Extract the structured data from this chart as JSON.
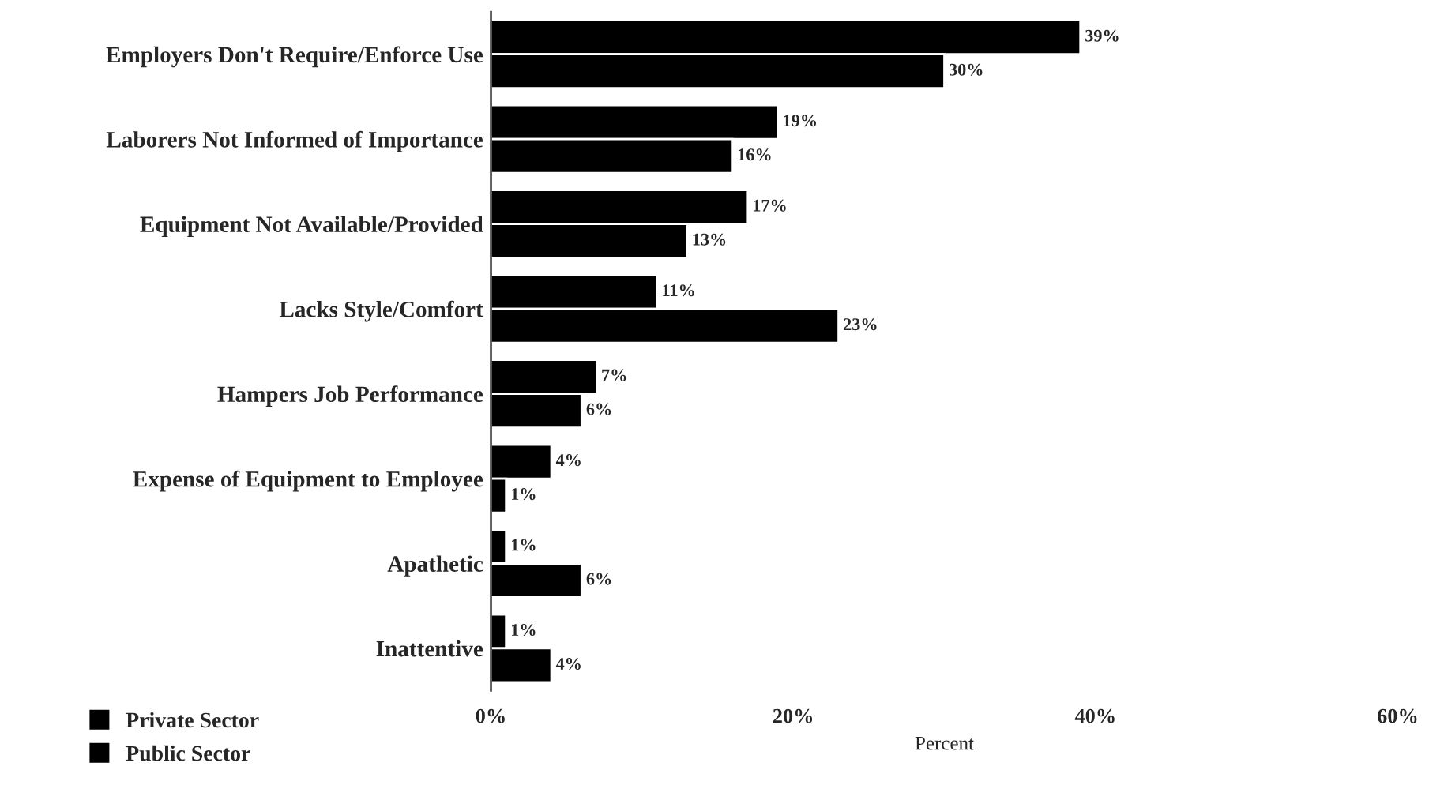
{
  "chart_data": {
    "type": "bar",
    "orientation": "horizontal",
    "xlabel": "Percent",
    "categories": [
      "Employers Don't Require/Enforce Use",
      "Laborers Not Informed of Importance",
      "Equipment Not Available/Provided",
      "Lacks Style/Comfort",
      "Hampers Job Performance",
      "Expense of Equipment to Employee",
      "Apathetic",
      "Inattentive"
    ],
    "series": [
      {
        "name": "Private Sector",
        "color": "#000000",
        "values": [
          39,
          19,
          17,
          11,
          7,
          4,
          1,
          1
        ],
        "value_labels": [
          "39%",
          "19%",
          "17%",
          "11%",
          "7%",
          "4%",
          "1%",
          "1%"
        ]
      },
      {
        "name": "Public Sector",
        "color": "#000000",
        "values": [
          30,
          16,
          13,
          23,
          6,
          1,
          6,
          4
        ],
        "value_labels": [
          "30%",
          "16%",
          "13%",
          "23%",
          "6%",
          "1%",
          "6%",
          "4%"
        ]
      }
    ],
    "xlim": [
      0,
      60
    ],
    "xticks": [
      {
        "value": 0,
        "label": "0%"
      },
      {
        "value": 20,
        "label": "20%"
      },
      {
        "value": 40,
        "label": "40%"
      },
      {
        "value": 60,
        "label": "60%"
      }
    ],
    "grid": false,
    "legend": "bottom left"
  }
}
